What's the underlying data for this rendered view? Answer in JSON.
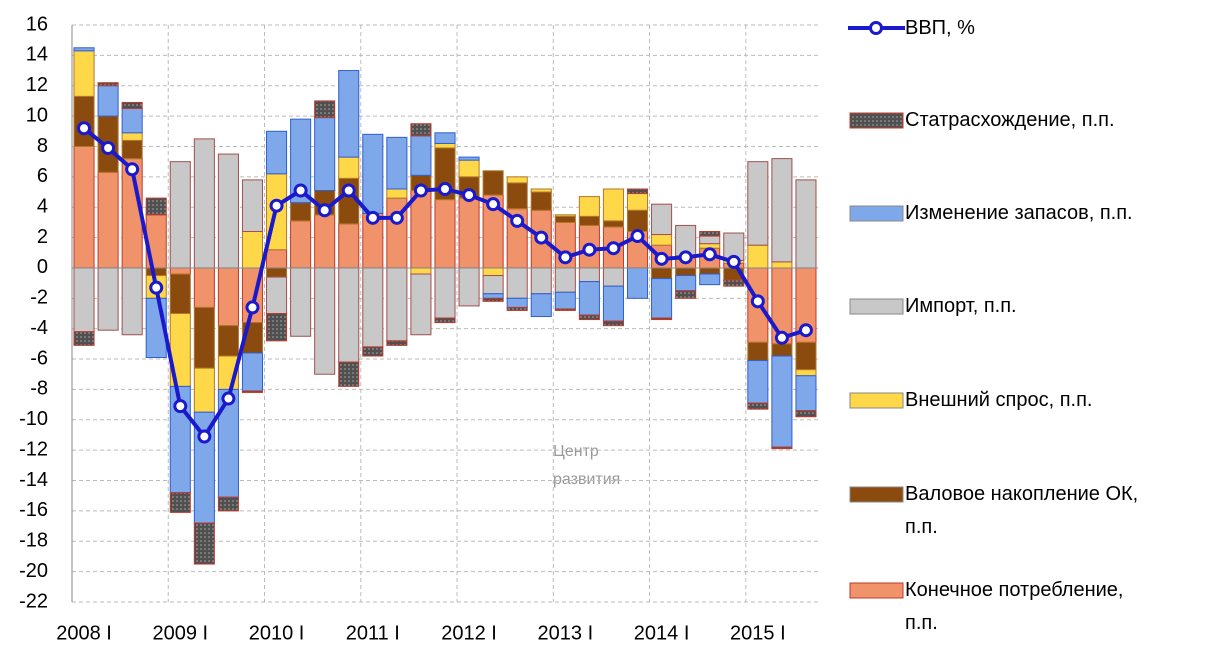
{
  "chart_data": {
    "type": "bar",
    "categories": [
      "2008 I",
      null,
      null,
      null,
      "2009 I",
      null,
      null,
      null,
      "2010 I",
      null,
      null,
      null,
      "2011 I",
      null,
      null,
      null,
      "2012 I",
      null,
      null,
      null,
      "2013 I",
      null,
      null,
      null,
      "2014 I",
      null,
      null,
      null,
      "2015 I",
      null,
      null
    ],
    "series": [
      {
        "name": "Конечное потребление, п.п.",
        "color": "#f0936a",
        "values": [
          8,
          6.3,
          7.2,
          3.5,
          -0.4,
          -2.6,
          -3.8,
          -3.6,
          1.2,
          3.1,
          3.5,
          2.9,
          3.6,
          4.6,
          5.1,
          4.5,
          4.6,
          4.8,
          3.9,
          3.8,
          3,
          2.8,
          2.7,
          2.4,
          1.5,
          0.8,
          1.3,
          0.3,
          -4.9,
          -5,
          -4.9
        ]
      },
      {
        "name": "Валовое накопление ОК, п.п.",
        "color": "#8b4a0e",
        "values": [
          3.3,
          3.7,
          1.2,
          -0.5,
          -2.6,
          -4,
          -2,
          -2,
          -0.6,
          1.2,
          1.6,
          3,
          0,
          0,
          1,
          3.4,
          1.4,
          1.6,
          1.7,
          1.2,
          0.4,
          0.6,
          0.4,
          1.4,
          -0.7,
          -0.5,
          -0.4,
          -0.8,
          -1.2,
          -0.8,
          -1.8
        ]
      },
      {
        "name": "Внешний спрос, п.п.",
        "color": "#ffd84a",
        "values": [
          3,
          0,
          0.5,
          -1.5,
          -4.8,
          -2.9,
          -2.2,
          2.4,
          5,
          0,
          0,
          1.4,
          0,
          0.6,
          -0.4,
          0.3,
          1.1,
          -0.5,
          0.4,
          0.2,
          0.1,
          1.3,
          2.1,
          1.1,
          0.7,
          0,
          0.3,
          0.2,
          1.5,
          0.4,
          -0.4
        ]
      },
      {
        "name": "Импорт, п.п.",
        "color": "#c8c8c8",
        "values": [
          -4.2,
          -4.1,
          -4.4,
          0,
          7,
          8.5,
          7.5,
          3.4,
          -2.4,
          -4.5,
          -7,
          -6.2,
          -5.2,
          -4.8,
          -4,
          -3.3,
          -2.5,
          -1.2,
          -2,
          -1.7,
          -1.6,
          -0.9,
          -1.2,
          0,
          2,
          2,
          0.5,
          1.8,
          5.5,
          6.8,
          5.8
        ]
      },
      {
        "name": "Изменение запасов, п.п.",
        "color": "#7fa8ea",
        "values": [
          0.2,
          2,
          1.6,
          -3.9,
          -7,
          -7.3,
          -7.1,
          -2.5,
          2.8,
          5.5,
          4.8,
          5.7,
          5.2,
          3.4,
          2.6,
          0.7,
          0.2,
          -0.3,
          -0.6,
          -1.5,
          -1.1,
          -2.2,
          -2.3,
          -2,
          -2.6,
          -1,
          -0.7,
          0,
          -2.8,
          -6,
          -2.3
        ]
      },
      {
        "name": "Статрасхождение, п.п.",
        "color": "#505050",
        "values": [
          -0.9,
          0.2,
          0.4,
          1.1,
          -1.3,
          -2.7,
          -0.9,
          -0.1,
          -1.8,
          0,
          1.1,
          -1.6,
          -0.6,
          -0.3,
          0.8,
          -0.3,
          0,
          -0.2,
          -0.2,
          0,
          -0.1,
          -0.3,
          -0.3,
          0.3,
          -0.1,
          -0.5,
          0.3,
          -0.4,
          -0.4,
          -0.1,
          -0.4
        ]
      },
      {
        "name": "ВВП, %",
        "type": "line",
        "color": "#1a1acc",
        "values": [
          9.2,
          7.9,
          6.5,
          -1.3,
          -9.1,
          -11.1,
          -8.6,
          -2.6,
          4.1,
          5.1,
          3.8,
          5.1,
          3.3,
          3.3,
          5.1,
          5.2,
          4.8,
          4.2,
          3.1,
          2,
          0.7,
          1.2,
          1.3,
          2.1,
          0.6,
          0.7,
          0.9,
          0.4,
          -2.2,
          -4.6,
          -4.1
        ]
      }
    ],
    "ylim": [
      -22,
      16
    ],
    "yticks": [
      -22,
      -20,
      -18,
      -16,
      -14,
      -12,
      -10,
      -8,
      -6,
      -4,
      -2,
      0,
      2,
      4,
      6,
      8,
      10,
      12,
      14,
      16
    ],
    "grid": true,
    "legend": "right",
    "annotations": [
      "Центр",
      "развития"
    ]
  }
}
